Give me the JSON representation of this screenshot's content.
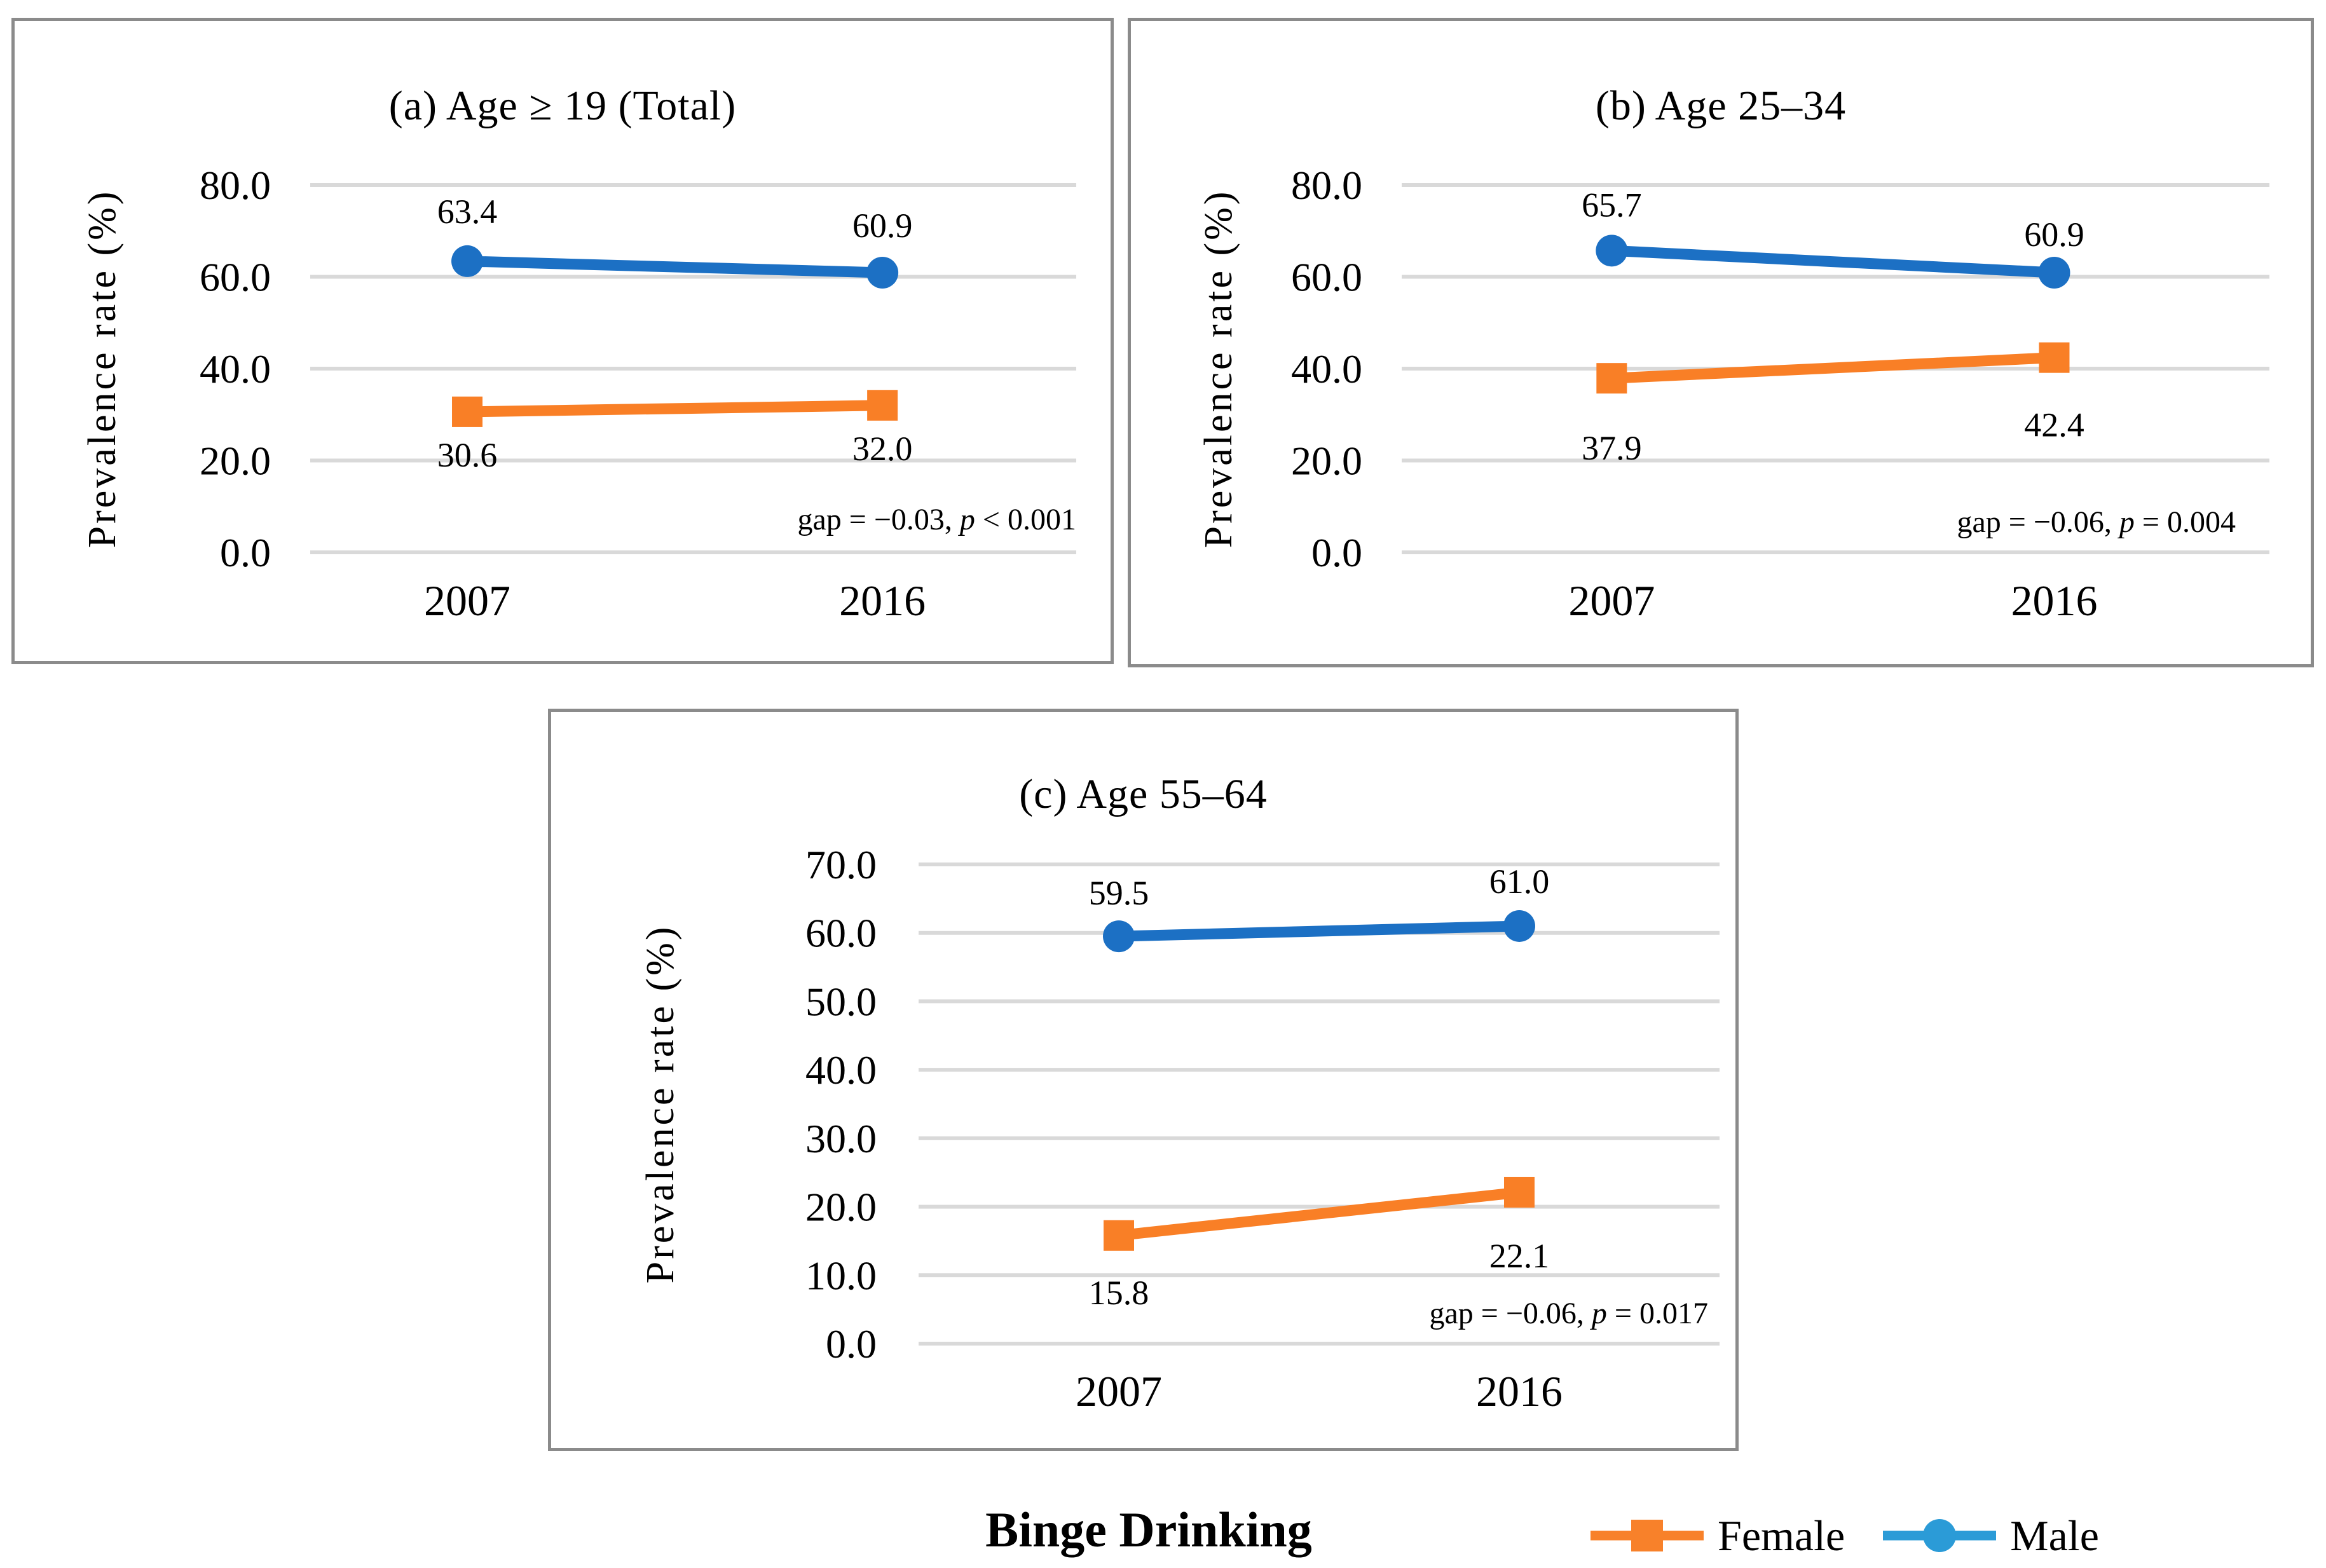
{
  "figure": {
    "caption": "Binge Drinking",
    "legend": [
      {
        "name": "Female",
        "marker": "square",
        "color": "#f8812a"
      },
      {
        "name": "Male",
        "marker": "circle",
        "color": "#2b9bd7"
      }
    ],
    "colors": {
      "male_line": "#1c70c4",
      "female_line": "#f97f26",
      "legend_male": "#2b9bd7",
      "legend_female": "#f8812a",
      "gridline": "#d9d9d9",
      "panel_border": "#8b8b8b"
    }
  },
  "chart_data": [
    {
      "type": "line",
      "title": "(a) Age ≥ 19 (Total)",
      "ylabel": "Prevalence rate (%)",
      "categories": [
        "2007",
        "2016"
      ],
      "ylim": [
        0,
        80
      ],
      "yticks": [
        "0.0",
        "20.0",
        "40.0",
        "60.0",
        "80.0"
      ],
      "grid": true,
      "legend_position": "none",
      "series": [
        {
          "name": "Male",
          "marker": "circle",
          "color": "#1c70c4",
          "values": [
            63.4,
            60.9
          ],
          "labels": [
            "63.4",
            "60.9"
          ]
        },
        {
          "name": "Female",
          "marker": "square",
          "color": "#f97f26",
          "values": [
            30.6,
            32.0
          ],
          "labels": [
            "30.6",
            "32.0"
          ]
        }
      ],
      "annotation": "gap = −0.03, p < 0.001"
    },
    {
      "type": "line",
      "title": "(b) Age 25–34",
      "ylabel": "Prevalence rate (%)",
      "categories": [
        "2007",
        "2016"
      ],
      "ylim": [
        0,
        80
      ],
      "yticks": [
        "0.0",
        "20.0",
        "40.0",
        "60.0",
        "80.0"
      ],
      "grid": true,
      "legend_position": "none",
      "series": [
        {
          "name": "Male",
          "marker": "circle",
          "color": "#1c70c4",
          "values": [
            65.7,
            60.9
          ],
          "labels": [
            "65.7",
            "60.9"
          ]
        },
        {
          "name": "Female",
          "marker": "square",
          "color": "#f97f26",
          "values": [
            37.9,
            42.4
          ],
          "labels": [
            "37.9",
            "42.4"
          ]
        }
      ],
      "annotation": "gap = −0.06, p = 0.004"
    },
    {
      "type": "line",
      "title": "(c) Age 55–64",
      "ylabel": "Prevalence rate (%)",
      "categories": [
        "2007",
        "2016"
      ],
      "ylim": [
        0,
        70
      ],
      "yticks": [
        "0.0",
        "10.0",
        "20.0",
        "30.0",
        "40.0",
        "50.0",
        "60.0",
        "70.0"
      ],
      "grid": true,
      "legend_position": "none",
      "series": [
        {
          "name": "Male",
          "marker": "circle",
          "color": "#1c70c4",
          "values": [
            59.5,
            61.0
          ],
          "labels": [
            "59.5",
            "61.0"
          ]
        },
        {
          "name": "Female",
          "marker": "square",
          "color": "#f97f26",
          "values": [
            15.8,
            22.1
          ],
          "labels": [
            "15.8",
            "22.1"
          ]
        }
      ],
      "annotation": "gap = −0.06, p = 0.017"
    }
  ]
}
